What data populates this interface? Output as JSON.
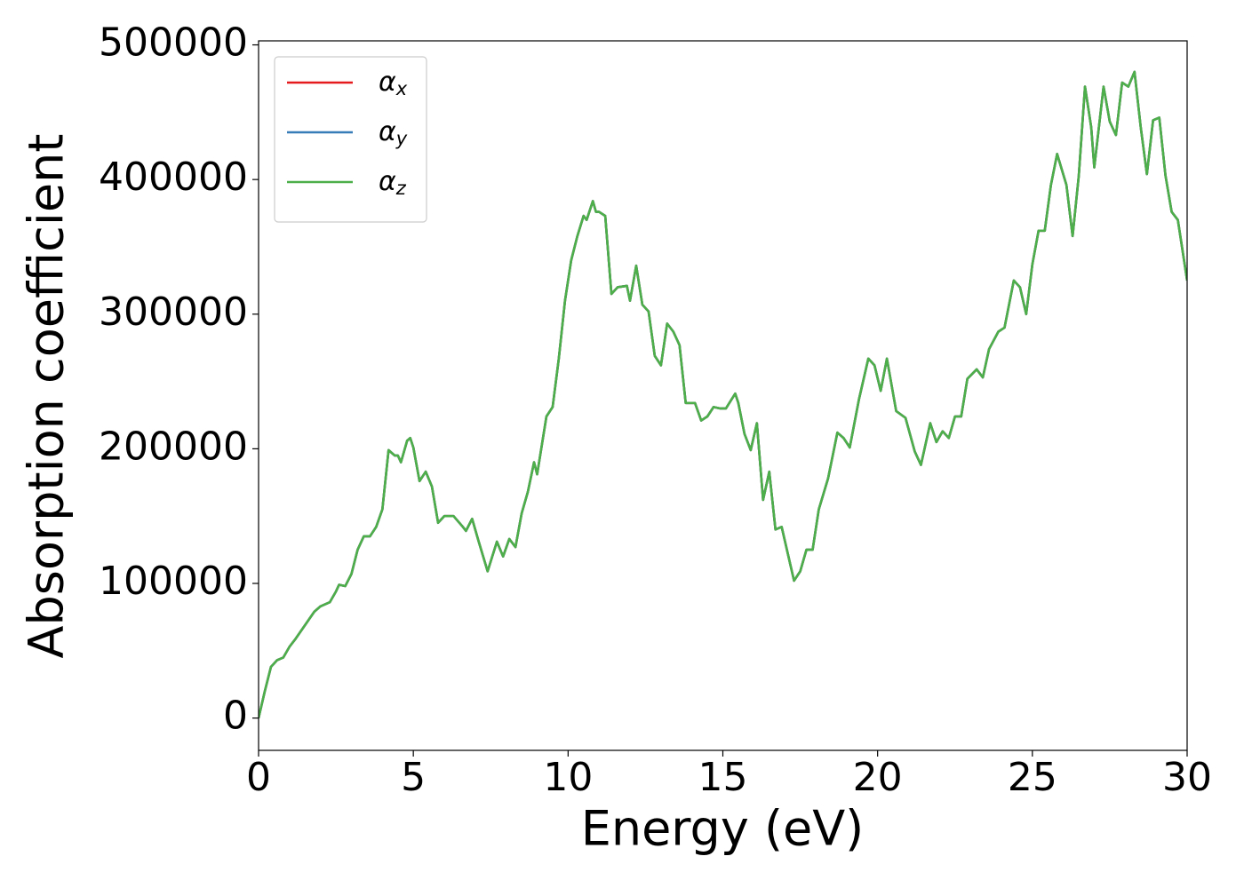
{
  "chart_data": {
    "type": "line",
    "xlabel": "Energy (eV)",
    "ylabel": "Absorption coefficient",
    "x": [
      0,
      0.2,
      0.4,
      0.6,
      0.8,
      1.0,
      1.2,
      1.5,
      1.8,
      2.0,
      2.3,
      2.5,
      2.6,
      2.8,
      3.0,
      3.2,
      3.4,
      3.6,
      3.8,
      4.0,
      4.2,
      4.4,
      4.5,
      4.6,
      4.8,
      4.9,
      5.0,
      5.2,
      5.4,
      5.6,
      5.8,
      6.0,
      6.3,
      6.6,
      6.7,
      6.9,
      7.1,
      7.4,
      7.7,
      7.9,
      8.1,
      8.3,
      8.5,
      8.7,
      8.9,
      9.0,
      9.3,
      9.5,
      9.7,
      9.9,
      10.1,
      10.3,
      10.5,
      10.6,
      10.8,
      10.9,
      11.0,
      11.2,
      11.4,
      11.6,
      11.9,
      12.0,
      12.2,
      12.4,
      12.6,
      12.8,
      13.0,
      13.2,
      13.4,
      13.6,
      13.8,
      14.1,
      14.3,
      14.5,
      14.7,
      14.9,
      15.1,
      15.4,
      15.5,
      15.7,
      15.9,
      16.1,
      16.3,
      16.5,
      16.7,
      16.9,
      17.1,
      17.3,
      17.5,
      17.7,
      17.9,
      18.1,
      18.4,
      18.7,
      18.9,
      19.1,
      19.4,
      19.7,
      19.9,
      20.1,
      20.3,
      20.6,
      20.9,
      21.2,
      21.4,
      21.7,
      21.9,
      22.1,
      22.3,
      22.5,
      22.7,
      22.9,
      23.2,
      23.4,
      23.6,
      23.9,
      24.1,
      24.4,
      24.6,
      24.8,
      25.0,
      25.2,
      25.4,
      25.6,
      25.8,
      26.1,
      26.3,
      26.5,
      26.7,
      26.9,
      27.0,
      27.3,
      27.5,
      27.7,
      27.9,
      28.1,
      28.3,
      28.5,
      28.7,
      28.9,
      29.1,
      29.3,
      29.5,
      29.7,
      30.0
    ],
    "series": [
      {
        "name": "αx",
        "color": "#e41a1c",
        "values": [
          0,
          19800,
          38000,
          43000,
          45000,
          53000,
          59000,
          69000,
          79000,
          83000,
          86000,
          94000,
          99000,
          98000,
          107000,
          125000,
          135000,
          135000,
          142000,
          155000,
          199000,
          195000,
          195000,
          190000,
          206000,
          208000,
          201000,
          176000,
          183000,
          172000,
          145000,
          150000,
          150000,
          142000,
          139000,
          148000,
          132000,
          109000,
          131000,
          120000,
          133000,
          127000,
          152000,
          168000,
          190000,
          181000,
          224000,
          231000,
          267000,
          310000,
          340000,
          358000,
          373000,
          370000,
          384000,
          376000,
          376000,
          373000,
          315000,
          320000,
          321000,
          310000,
          336000,
          307000,
          302000,
          269000,
          262000,
          293000,
          287000,
          277000,
          234000,
          234000,
          221000,
          224000,
          231000,
          230000,
          230000,
          241000,
          234000,
          211000,
          199000,
          219000,
          162000,
          183000,
          140000,
          142000,
          122000,
          102000,
          109000,
          125000,
          125000,
          155000,
          178000,
          212000,
          208000,
          201000,
          237000,
          267000,
          262000,
          243000,
          267000,
          228000,
          223000,
          198000,
          188000,
          219000,
          205000,
          213000,
          208000,
          224000,
          224000,
          252000,
          259000,
          253000,
          274000,
          287000,
          290000,
          325000,
          320000,
          300000,
          337000,
          362000,
          362000,
          396000,
          419000,
          396000,
          358000,
          403000,
          469000,
          439000,
          409000,
          469000,
          443000,
          433000,
          472000,
          469000,
          480000,
          439000,
          404000,
          444000,
          446000,
          403000,
          376000,
          370000,
          325000
        ]
      },
      {
        "name": "αy",
        "color": "#377eb8",
        "values": [
          0,
          19800,
          38000,
          43000,
          45000,
          53000,
          59000,
          69000,
          79000,
          83000,
          86000,
          94000,
          99000,
          98000,
          107000,
          125000,
          135000,
          135000,
          142000,
          155000,
          199000,
          195000,
          195000,
          190000,
          206000,
          208000,
          201000,
          176000,
          183000,
          172000,
          145000,
          150000,
          150000,
          142000,
          139000,
          148000,
          132000,
          109000,
          131000,
          120000,
          133000,
          127000,
          152000,
          168000,
          190000,
          181000,
          224000,
          231000,
          267000,
          310000,
          340000,
          358000,
          373000,
          370000,
          384000,
          376000,
          376000,
          373000,
          315000,
          320000,
          321000,
          310000,
          336000,
          307000,
          302000,
          269000,
          262000,
          293000,
          287000,
          277000,
          234000,
          234000,
          221000,
          224000,
          231000,
          230000,
          230000,
          241000,
          234000,
          211000,
          199000,
          219000,
          162000,
          183000,
          140000,
          142000,
          122000,
          102000,
          109000,
          125000,
          125000,
          155000,
          178000,
          212000,
          208000,
          201000,
          237000,
          267000,
          262000,
          243000,
          267000,
          228000,
          223000,
          198000,
          188000,
          219000,
          205000,
          213000,
          208000,
          224000,
          224000,
          252000,
          259000,
          253000,
          274000,
          287000,
          290000,
          325000,
          320000,
          300000,
          337000,
          362000,
          362000,
          396000,
          419000,
          396000,
          358000,
          403000,
          469000,
          439000,
          409000,
          469000,
          443000,
          433000,
          472000,
          469000,
          480000,
          439000,
          404000,
          444000,
          446000,
          403000,
          376000,
          370000,
          325000
        ]
      },
      {
        "name": "αz",
        "color": "#4daf4a",
        "values": [
          0,
          19800,
          38000,
          43000,
          45000,
          53000,
          59000,
          69000,
          79000,
          83000,
          86000,
          94000,
          99000,
          98000,
          107000,
          125000,
          135000,
          135000,
          142000,
          155000,
          199000,
          195000,
          195000,
          190000,
          206000,
          208000,
          201000,
          176000,
          183000,
          172000,
          145000,
          150000,
          150000,
          142000,
          139000,
          148000,
          132000,
          109000,
          131000,
          120000,
          133000,
          127000,
          152000,
          168000,
          190000,
          181000,
          224000,
          231000,
          267000,
          310000,
          340000,
          358000,
          373000,
          370000,
          384000,
          376000,
          376000,
          373000,
          315000,
          320000,
          321000,
          310000,
          336000,
          307000,
          302000,
          269000,
          262000,
          293000,
          287000,
          277000,
          234000,
          234000,
          221000,
          224000,
          231000,
          230000,
          230000,
          241000,
          234000,
          211000,
          199000,
          219000,
          162000,
          183000,
          140000,
          142000,
          122000,
          102000,
          109000,
          125000,
          125000,
          155000,
          178000,
          212000,
          208000,
          201000,
          237000,
          267000,
          262000,
          243000,
          267000,
          228000,
          223000,
          198000,
          188000,
          219000,
          205000,
          213000,
          208000,
          224000,
          224000,
          252000,
          259000,
          253000,
          274000,
          287000,
          290000,
          325000,
          320000,
          300000,
          337000,
          362000,
          362000,
          396000,
          419000,
          396000,
          358000,
          403000,
          469000,
          439000,
          409000,
          469000,
          443000,
          433000,
          472000,
          469000,
          480000,
          439000,
          404000,
          444000,
          446000,
          403000,
          376000,
          370000,
          325000
        ]
      }
    ],
    "xlim": [
      0,
      30
    ],
    "xticks": [
      0,
      5,
      10,
      15,
      20,
      25,
      30
    ],
    "ylim": [
      -24000,
      503000
    ],
    "yticks": [
      0,
      100000,
      200000,
      300000,
      400000,
      500000
    ],
    "grid": false,
    "legend": "upper left"
  }
}
